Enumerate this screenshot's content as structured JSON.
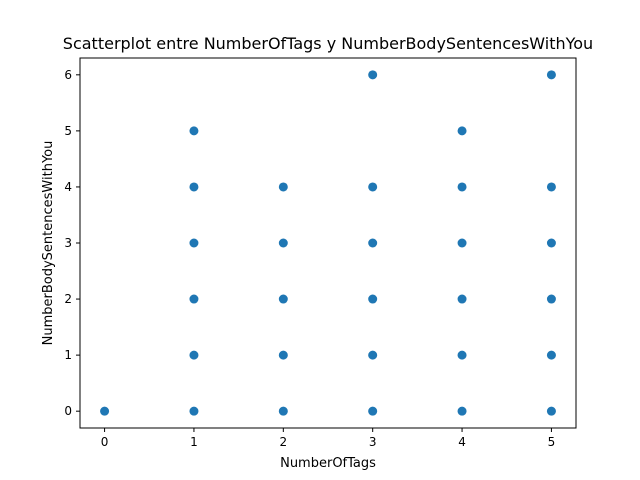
{
  "chart_data": {
    "type": "scatter",
    "title": "Scatterplot entre NumberOfTags y NumberBodySentencesWithYou",
    "xlabel": "NumberOfTags",
    "ylabel": "NumberBodySentencesWithYou",
    "xlim": [
      -0.275,
      5.275
    ],
    "ylim": [
      -0.3,
      6.3
    ],
    "xticks": [
      0,
      1,
      2,
      3,
      4,
      5
    ],
    "yticks": [
      0,
      1,
      2,
      3,
      4,
      5,
      6
    ],
    "grid": false,
    "marker_color": "#1f77b4",
    "points": [
      {
        "x": 0,
        "y": 0
      },
      {
        "x": 1,
        "y": 0
      },
      {
        "x": 1,
        "y": 1
      },
      {
        "x": 1,
        "y": 2
      },
      {
        "x": 1,
        "y": 3
      },
      {
        "x": 1,
        "y": 4
      },
      {
        "x": 1,
        "y": 5
      },
      {
        "x": 2,
        "y": 0
      },
      {
        "x": 2,
        "y": 1
      },
      {
        "x": 2,
        "y": 2
      },
      {
        "x": 2,
        "y": 3
      },
      {
        "x": 2,
        "y": 4
      },
      {
        "x": 3,
        "y": 0
      },
      {
        "x": 3,
        "y": 1
      },
      {
        "x": 3,
        "y": 2
      },
      {
        "x": 3,
        "y": 3
      },
      {
        "x": 3,
        "y": 4
      },
      {
        "x": 3,
        "y": 6
      },
      {
        "x": 4,
        "y": 0
      },
      {
        "x": 4,
        "y": 1
      },
      {
        "x": 4,
        "y": 2
      },
      {
        "x": 4,
        "y": 3
      },
      {
        "x": 4,
        "y": 4
      },
      {
        "x": 4,
        "y": 5
      },
      {
        "x": 5,
        "y": 0
      },
      {
        "x": 5,
        "y": 1
      },
      {
        "x": 5,
        "y": 2
      },
      {
        "x": 5,
        "y": 3
      },
      {
        "x": 5,
        "y": 4
      },
      {
        "x": 5,
        "y": 6
      }
    ]
  }
}
